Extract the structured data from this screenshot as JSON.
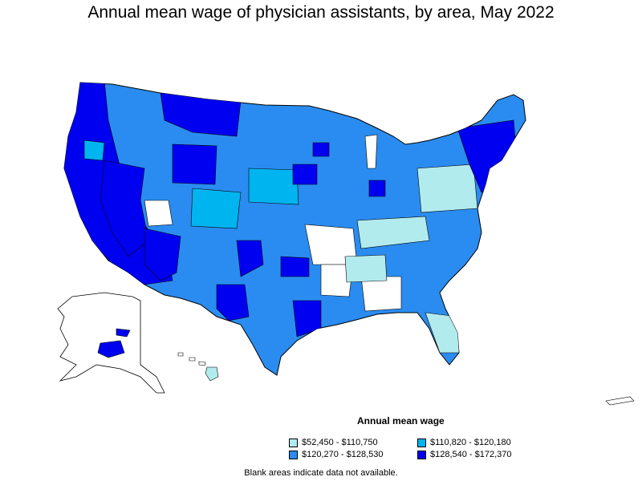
{
  "title": "Annual mean wage of physician assistants, by area, May 2022",
  "legend": {
    "title": "Annual mean wage",
    "items": [
      {
        "label": "$52,450 - $110,750",
        "color": "#b2ebee"
      },
      {
        "label": "$110,820 - $120,180",
        "color": "#00b4f0"
      },
      {
        "label": "$120,270 - $128,530",
        "color": "#2a8cf0"
      },
      {
        "label": "$128,540 - $172,370",
        "color": "#0000f0"
      }
    ]
  },
  "note": "Blank areas indicate data not available."
}
